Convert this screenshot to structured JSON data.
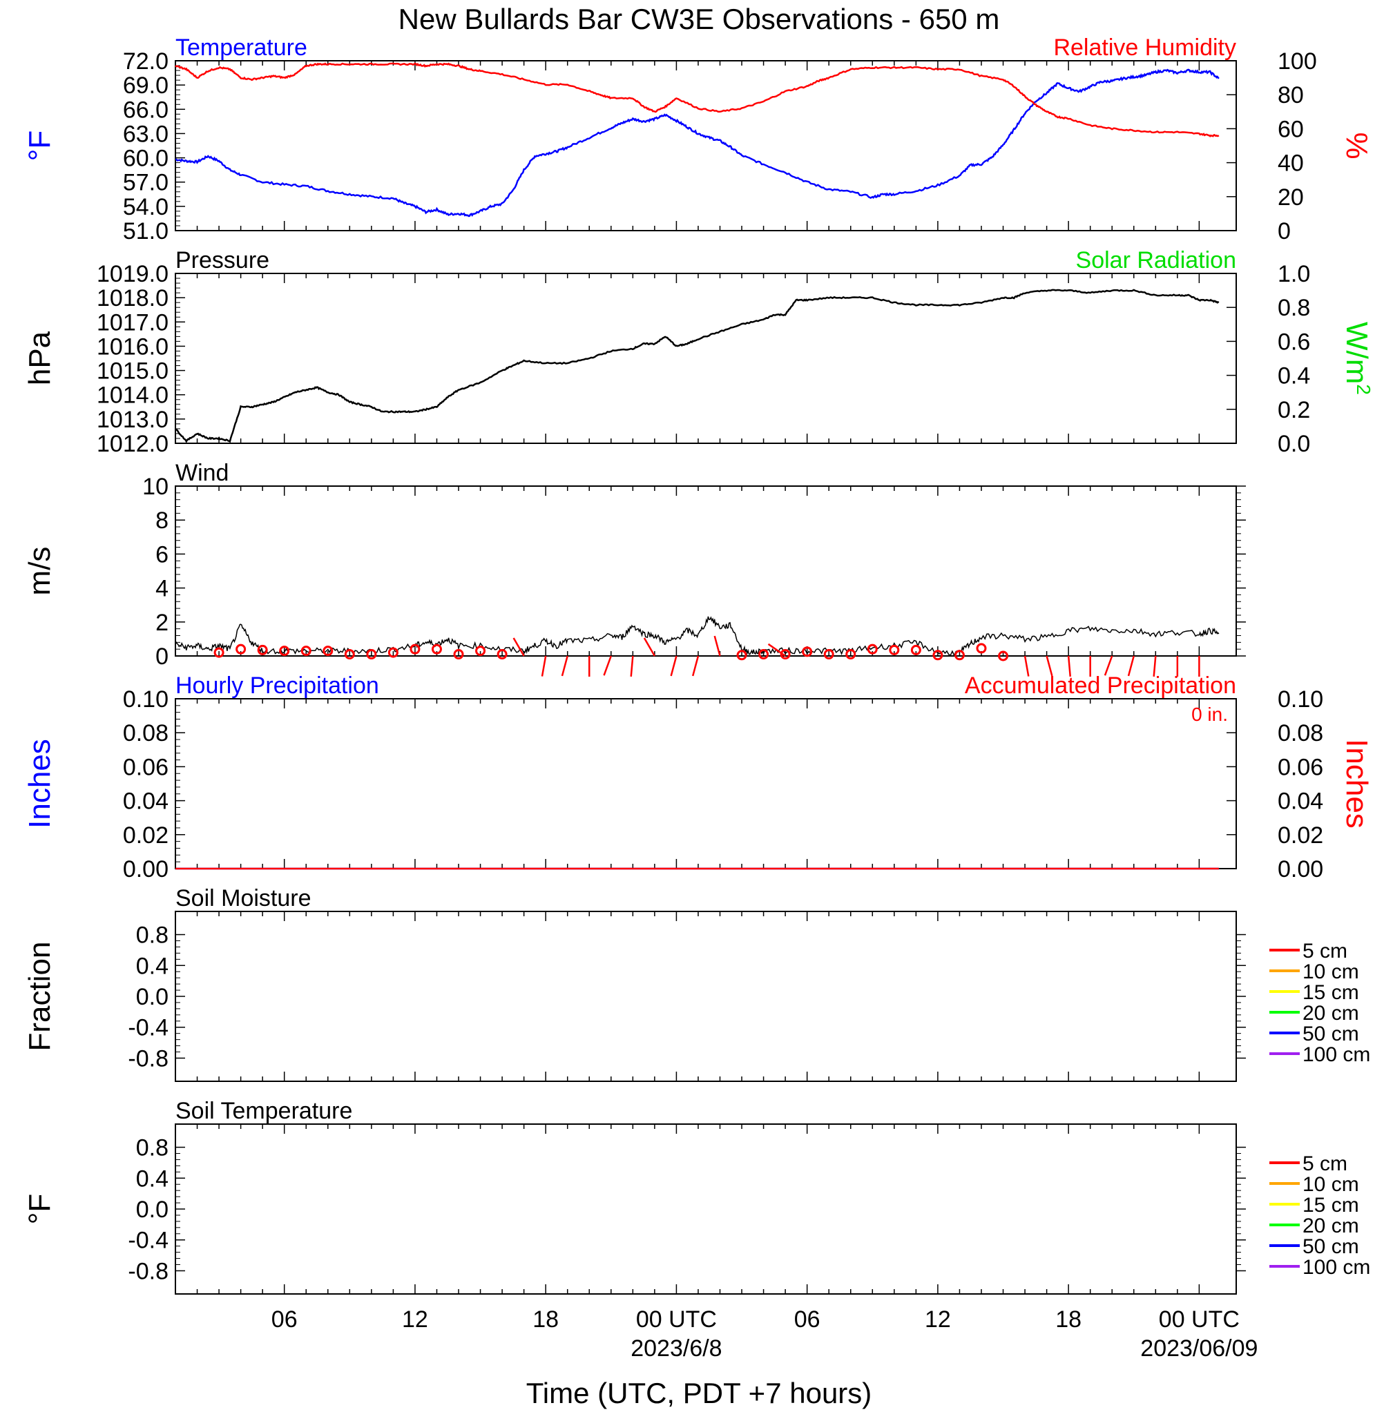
{
  "title": "New Bullards Bar CW3E Observations - 650 m",
  "xlabel": "Time (UTC, PDT +7 hours)",
  "x_ticks": [
    "06",
    "12",
    "18",
    "00 UTC",
    "06",
    "12",
    "18",
    "00 UTC"
  ],
  "x_dates": [
    "2023/6/8",
    "2023/06/09"
  ],
  "colors": {
    "temperature": "#0000ff",
    "humidity": "#ff0000",
    "pressure": "#000000",
    "solar": "#00dd00",
    "wind": "#000000",
    "wind_marker": "#ff0000",
    "precip_hourly": "#0000ff",
    "precip_accum": "#ff0000"
  },
  "chart_data": [
    {
      "type": "line",
      "panel": "temperature-humidity",
      "left_title": "Temperature",
      "right_title": "Relative Humidity",
      "ylabel_left": "°F",
      "ylabel_right": "%",
      "ylim_left": [
        51,
        72
      ],
      "ylim_right": [
        0,
        100
      ],
      "yticks_left": [
        "72.0",
        "69.0",
        "66.0",
        "63.0",
        "60.0",
        "57.0",
        "54.0",
        "51.0"
      ],
      "yticks_right": [
        "100",
        "80",
        "60",
        "40",
        "20",
        "0"
      ],
      "x_unit": "hours since 2023-06-07 01 UTC",
      "series": [
        {
          "name": "Temperature",
          "axis": "left",
          "x": [
            0,
            0.5,
            1,
            1.5,
            2,
            2.5,
            3,
            4,
            5,
            6,
            7,
            8,
            9,
            10,
            10.5,
            11,
            11.5,
            12,
            12.5,
            13,
            13.5,
            14,
            14.5,
            15,
            15.5,
            16,
            16.5,
            17,
            17.5,
            18,
            19,
            20,
            20.5,
            21,
            21.5,
            22,
            22.5,
            23,
            23.5,
            24,
            24.5,
            25,
            25.5,
            26,
            27,
            28,
            29,
            30,
            31,
            32,
            32.5,
            33,
            34,
            35,
            36,
            36.5,
            37,
            37.5,
            38,
            38.5,
            39,
            39.5,
            40,
            40.5,
            41,
            41.5,
            42,
            42.5,
            43,
            43.5,
            44,
            44.5,
            45,
            45.5,
            46,
            46.5,
            47,
            47.5,
            47.9
          ],
          "y": [
            59.8,
            59.6,
            59.5,
            60.2,
            59.6,
            58.5,
            57.9,
            57.0,
            56.7,
            56.5,
            55.9,
            55.5,
            55.2,
            55.0,
            54.4,
            54.0,
            53.3,
            53.6,
            53.0,
            53.1,
            52.9,
            53.4,
            54.0,
            54.3,
            56.0,
            58.5,
            60.2,
            60.5,
            60.8,
            61.3,
            62.5,
            63.7,
            64.3,
            64.8,
            64.5,
            64.8,
            65.3,
            64.6,
            63.8,
            63.0,
            62.5,
            62.1,
            61.3,
            60.3,
            59.2,
            58.2,
            57.0,
            56.1,
            55.8,
            55.1,
            55.5,
            55.5,
            55.9,
            56.6,
            57.8,
            59.1,
            59.2,
            60.1,
            61.6,
            63.5,
            65.5,
            67.0,
            68.0,
            69.2,
            68.6,
            68.2,
            68.8,
            69.4,
            69.5,
            69.8,
            70.0,
            70.2,
            70.6,
            70.8,
            70.5,
            70.8,
            70.6,
            70.6,
            69.8
          ]
        },
        {
          "name": "Relative Humidity",
          "axis": "right",
          "x": [
            0,
            0.5,
            1,
            1.5,
            2,
            2.5,
            3,
            3.5,
            4,
            4.5,
            5,
            5.5,
            6,
            6.5,
            7,
            8,
            9,
            10,
            11,
            11.5,
            12,
            12.5,
            13,
            13.5,
            14,
            15,
            16,
            17,
            18,
            19,
            19.5,
            20,
            21,
            21.5,
            22,
            22.5,
            23,
            24,
            25,
            26,
            27,
            28,
            29,
            29.5,
            30,
            31,
            32,
            33,
            34,
            35,
            36,
            37,
            38,
            38.5,
            39,
            39.5,
            40,
            40.5,
            41,
            42,
            43,
            44,
            45,
            46,
            47,
            47.5,
            47.9
          ],
          "y": [
            97,
            95,
            90,
            94,
            96,
            95,
            90,
            89,
            90,
            91,
            90,
            92,
            97,
            98,
            98,
            98,
            98,
            98,
            98,
            97,
            98,
            98,
            97,
            95,
            94,
            92,
            89,
            86,
            86,
            82,
            80,
            78,
            78,
            73,
            70,
            73,
            78,
            72,
            70,
            72,
            76,
            82,
            85,
            88,
            90,
            95,
            96,
            96,
            96,
            95,
            95,
            91,
            89,
            85,
            79,
            74,
            70,
            67,
            66,
            62,
            60,
            59,
            58,
            58,
            57,
            56,
            56
          ]
        }
      ]
    },
    {
      "type": "line",
      "panel": "pressure",
      "left_title": "Pressure",
      "right_title": "Solar Radiation",
      "ylabel_left": "hPa",
      "ylabel_right": "W/m",
      "ylabel_right_sup": "2",
      "ylim_left": [
        1012,
        1019
      ],
      "ylim_right": [
        0,
        1
      ],
      "yticks_left": [
        "1019.0",
        "1018.0",
        "1017.0",
        "1016.0",
        "1015.0",
        "1014.0",
        "1013.0",
        "1012.0"
      ],
      "yticks_right": [
        "1.0",
        "0.8",
        "0.6",
        "0.4",
        "0.2",
        "0.0"
      ],
      "x_unit": "hours since 2023-06-07 01 UTC",
      "series": [
        {
          "name": "Pressure",
          "axis": "left",
          "x": [
            0,
            0.5,
            1,
            1.5,
            2,
            2.5,
            3,
            3.5,
            4,
            4.5,
            5,
            5.5,
            6,
            6.5,
            7,
            7.5,
            8,
            8.5,
            9,
            9.5,
            10,
            10.5,
            11,
            11.5,
            12,
            12.5,
            13,
            14,
            15,
            15.5,
            16,
            17,
            18,
            19,
            20,
            21,
            21.5,
            22,
            22.5,
            23,
            23.5,
            24,
            25,
            26,
            27,
            27.5,
            28,
            28.5,
            29,
            30,
            31,
            32,
            33,
            34,
            35,
            36,
            37,
            38,
            38.5,
            39,
            40,
            41,
            42,
            43,
            44,
            45,
            46,
            46.5,
            47,
            47.5,
            47.9
          ],
          "y": [
            1012.6,
            1012.1,
            1012.4,
            1012.2,
            1012.2,
            1012.1,
            1013.5,
            1013.5,
            1013.6,
            1013.7,
            1013.9,
            1014.1,
            1014.2,
            1014.3,
            1014.1,
            1014.0,
            1013.7,
            1013.6,
            1013.5,
            1013.3,
            1013.3,
            1013.3,
            1013.3,
            1013.4,
            1013.5,
            1013.9,
            1014.2,
            1014.5,
            1015.0,
            1015.2,
            1015.4,
            1015.3,
            1015.3,
            1015.5,
            1015.8,
            1015.9,
            1016.1,
            1016.1,
            1016.4,
            1016.0,
            1016.1,
            1016.3,
            1016.6,
            1016.9,
            1017.1,
            1017.3,
            1017.3,
            1017.9,
            1017.9,
            1018.0,
            1018.0,
            1018.0,
            1017.8,
            1017.7,
            1017.7,
            1017.7,
            1017.8,
            1018.0,
            1018.0,
            1018.2,
            1018.3,
            1018.3,
            1018.2,
            1018.3,
            1018.3,
            1018.1,
            1018.1,
            1018.1,
            1017.9,
            1017.9,
            1017.8
          ]
        }
      ]
    },
    {
      "type": "line",
      "panel": "wind",
      "left_title": "Wind",
      "ylabel_left": "m/s",
      "ylim_left": [
        0,
        10
      ],
      "yticks_left": [
        "10",
        "8",
        "6",
        "4",
        "2",
        "0"
      ],
      "x_unit": "hours since 2023-06-07 01 UTC",
      "series": [
        {
          "name": "Wind",
          "x": [
            0,
            0.5,
            1,
            1.5,
            2,
            2.5,
            3,
            3.5,
            4,
            5,
            6,
            7,
            8,
            9,
            10,
            11,
            11.5,
            12,
            12.5,
            13,
            14,
            15,
            16,
            16.5,
            17,
            17.5,
            18,
            19,
            20,
            20.5,
            21,
            21.5,
            22,
            22.5,
            23,
            23.5,
            24,
            24.5,
            25,
            25.5,
            26,
            26.5,
            27,
            28,
            29,
            30,
            31,
            32,
            33,
            34,
            35,
            36,
            36.5,
            37,
            38,
            39,
            40,
            41,
            42,
            43,
            44,
            45,
            46,
            47,
            47.5,
            47.9
          ],
          "y": [
            0.7,
            0.5,
            0.6,
            0.4,
            0.6,
            0.4,
            1.8,
            0.8,
            0.3,
            0.3,
            0.3,
            0.3,
            0.3,
            0.3,
            0.4,
            0.6,
            0.8,
            0.7,
            1.0,
            0.6,
            0.6,
            0.4,
            0.3,
            0.6,
            0.9,
            0.6,
            0.9,
            0.9,
            1.2,
            1.1,
            1.8,
            1.3,
            1.2,
            0.8,
            1.0,
            1.5,
            1.2,
            2.3,
            1.7,
            1.8,
            0.4,
            0.2,
            0.3,
            0.3,
            0.3,
            0.3,
            0.3,
            0.5,
            0.6,
            0.8,
            0.2,
            0.2,
            0.7,
            1.1,
            1.2,
            1.0,
            1.1,
            1.5,
            1.6,
            1.5,
            1.5,
            1.3,
            1.4,
            1.3,
            1.5,
            1.3
          ]
        }
      ],
      "calm_markers_x": [
        2,
        3,
        4,
        5,
        6,
        7,
        8,
        9,
        10,
        11,
        12,
        13,
        14,
        15,
        26,
        27,
        28,
        29,
        30,
        31,
        32,
        33,
        34,
        35,
        36,
        37,
        38
      ],
      "calm_markers_y": [
        0.2,
        0.4,
        0.35,
        0.3,
        0.3,
        0.3,
        0.1,
        0.1,
        0.2,
        0.4,
        0.4,
        0.1,
        0.3,
        0.1,
        0.05,
        0.1,
        0.1,
        0.25,
        0.1,
        0.1,
        0.4,
        0.35,
        0.35,
        0.05,
        0.05,
        0.45,
        0.0
      ],
      "barbs_x": [
        16,
        17,
        18,
        19,
        20,
        21,
        22,
        23,
        24,
        25,
        28,
        39,
        40,
        41,
        42,
        43,
        44,
        45,
        46,
        47
      ],
      "barbs_dir_deg": [
        210,
        350,
        345,
        0,
        340,
        355,
        210,
        345,
        345,
        195,
        235,
        10,
        15,
        5,
        0,
        340,
        345,
        355,
        0,
        0
      ]
    },
    {
      "type": "line",
      "panel": "precipitation",
      "left_title": "Hourly Precipitation",
      "right_title": "Accumulated Precipitation",
      "total": "0 in.",
      "ylabel_left": "Inches",
      "ylabel_right": "Inches",
      "ylim_left": [
        0,
        0.1
      ],
      "ylim_right": [
        0,
        0.1
      ],
      "yticks_left": [
        "0.10",
        "0.08",
        "0.06",
        "0.04",
        "0.02",
        "0.00"
      ],
      "yticks_right": [
        "0.10",
        "0.08",
        "0.06",
        "0.04",
        "0.02",
        "0.00"
      ],
      "x_unit": "hours since 2023-06-07 01 UTC",
      "series": [
        {
          "name": "Hourly Precipitation",
          "x": [
            0,
            47.9
          ],
          "y": [
            0,
            0
          ]
        },
        {
          "name": "Accumulated Precipitation",
          "x": [
            0,
            47.9
          ],
          "y": [
            0,
            0
          ]
        }
      ]
    },
    {
      "type": "line",
      "panel": "soil-moisture",
      "left_title": "Soil Moisture",
      "ylabel_left": "Fraction",
      "ylim_left": [
        -1.1,
        1.1
      ],
      "yticks_left": [
        "0.8",
        "0.4",
        "0.0",
        "-0.4",
        "-0.8"
      ],
      "legend_placement": "right",
      "legend": [
        {
          "name": "5 cm",
          "color": "#ff0000"
        },
        {
          "name": "10 cm",
          "color": "#ffa500"
        },
        {
          "name": "15 cm",
          "color": "#ffff00"
        },
        {
          "name": "20 cm",
          "color": "#00ff00"
        },
        {
          "name": "50 cm",
          "color": "#0000ff"
        },
        {
          "name": "100 cm",
          "color": "#a020f0"
        }
      ]
    },
    {
      "type": "line",
      "panel": "soil-temperature",
      "left_title": "Soil Temperature",
      "ylabel_left": "°F",
      "ylim_left": [
        -1.1,
        1.1
      ],
      "yticks_left": [
        "0.8",
        "0.4",
        "0.0",
        "-0.4",
        "-0.8"
      ],
      "legend_placement": "right",
      "legend": [
        {
          "name": "5 cm",
          "color": "#ff0000"
        },
        {
          "name": "10 cm",
          "color": "#ffa500"
        },
        {
          "name": "15 cm",
          "color": "#ffff00"
        },
        {
          "name": "20 cm",
          "color": "#00ff00"
        },
        {
          "name": "50 cm",
          "color": "#0000ff"
        },
        {
          "name": "100 cm",
          "color": "#a020f0"
        }
      ]
    }
  ]
}
